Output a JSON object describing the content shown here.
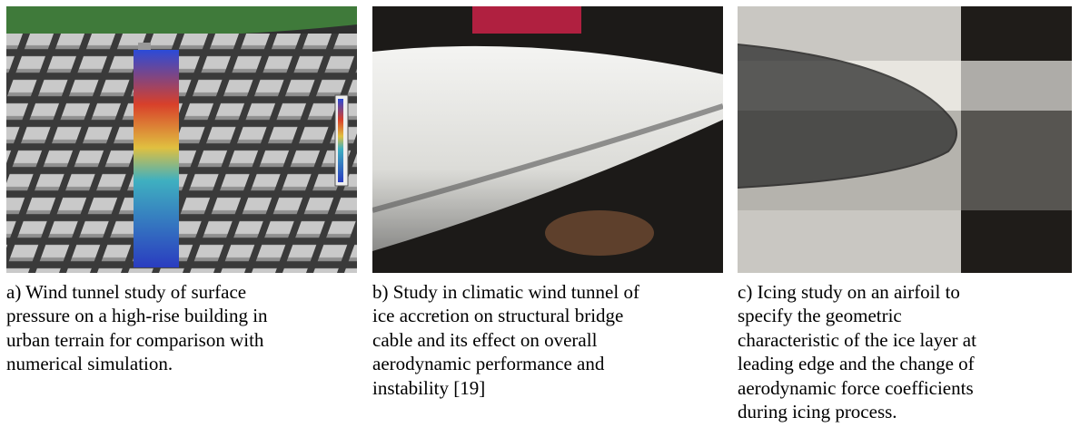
{
  "figures": [
    {
      "caption_lines": [
        "a) Wind tunnel study of surface",
        "pressure on a high-rise building in",
        "urban terrain for comparison with",
        "numerical simulation."
      ]
    },
    {
      "caption_lines": [
        "b) Study in climatic wind tunnel of",
        "ice accretion on structural bridge",
        "cable and its effect on overall",
        "aerodynamic performance and",
        "instability [19]"
      ]
    },
    {
      "caption_lines": [
        "c) Icing study on an airfoil to",
        "specify the geometric",
        "characteristic of the ice layer at",
        "leading edge and the change of",
        "aerodynamic force coefficients",
        "during icing process."
      ]
    }
  ]
}
